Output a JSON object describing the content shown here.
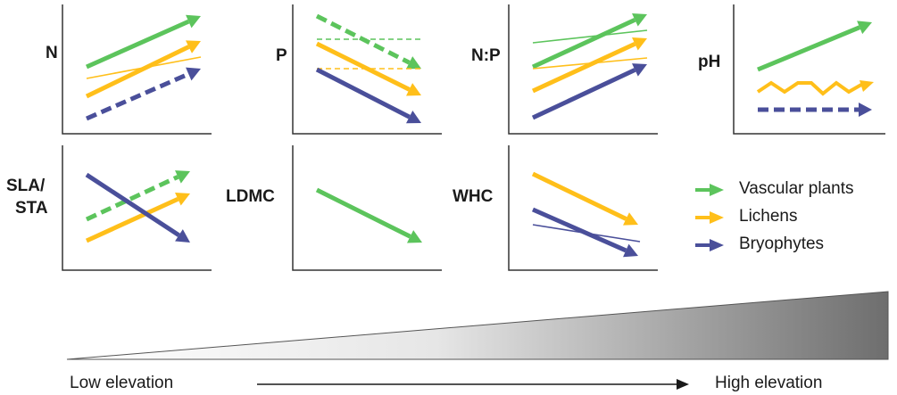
{
  "colors": {
    "vascular": "#5cc45c",
    "lichens": "#ffbf1a",
    "bryophytes": "#4a4f9a",
    "axis": "#333333",
    "text": "#1a1a1a"
  },
  "panels": [
    {
      "id": "n",
      "label": "N"
    },
    {
      "id": "p",
      "label": "P"
    },
    {
      "id": "np",
      "label": "N:P"
    },
    {
      "id": "ph",
      "label": "pH"
    },
    {
      "id": "sla",
      "label_lines": [
        "SLA/",
        "STA"
      ]
    },
    {
      "id": "ldmc",
      "label": "LDMC"
    },
    {
      "id": "whc",
      "label": "WHC"
    }
  ],
  "legend": [
    {
      "label": "Vascular plants",
      "color_key": "vascular"
    },
    {
      "label": "Lichens",
      "color_key": "lichens"
    },
    {
      "label": "Bryophytes",
      "color_key": "bryophytes"
    }
  ],
  "elevation": {
    "low_label": "Low elevation",
    "high_label": "High elevation"
  }
}
